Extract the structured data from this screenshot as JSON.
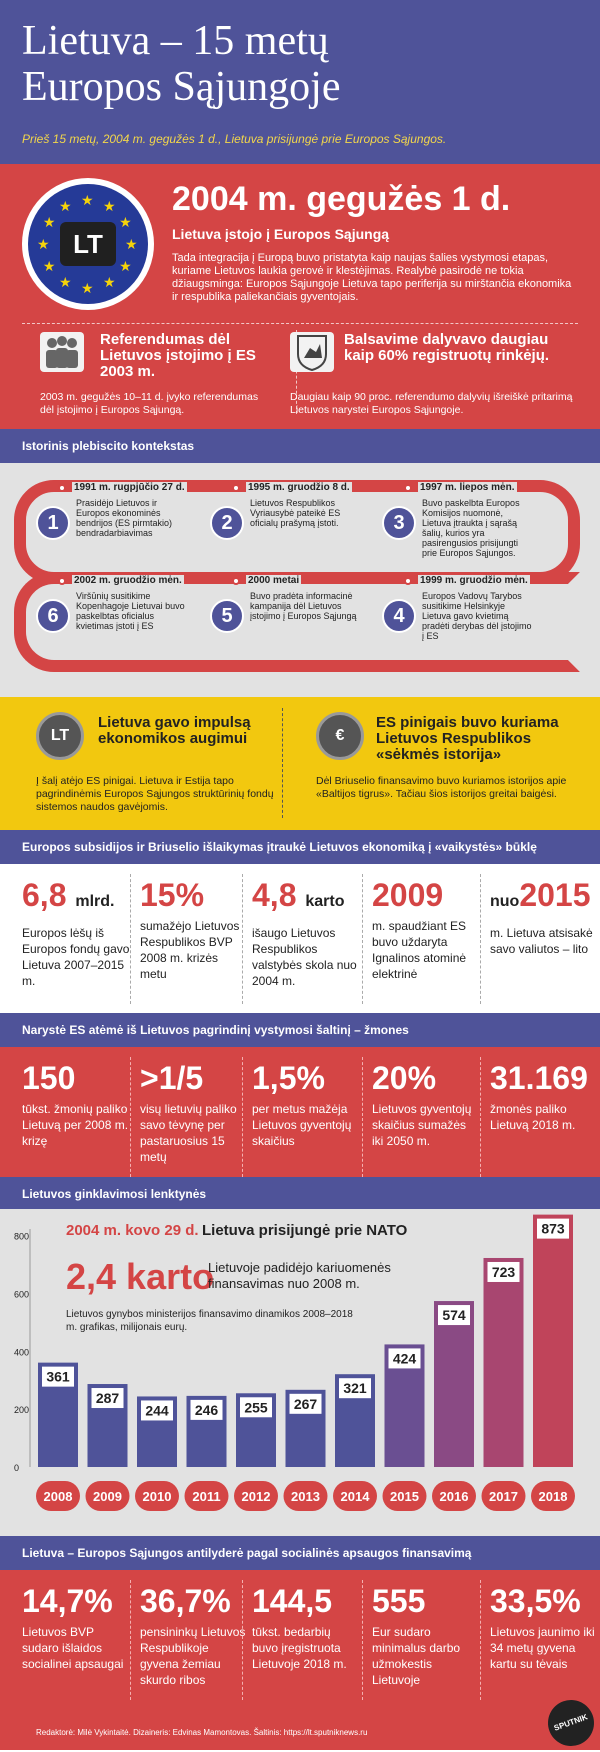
{
  "header": {
    "title_line1": "Lietuva – 15 metų",
    "title_line2": "Europos Sąjungoje",
    "subtitle": "Prieš 15 metų, 2004 m. gegužės 1 d., Lietuva prisijungė prie Europos Sąjungos."
  },
  "intro": {
    "badge": "LT",
    "date": "2004 m. gegužės 1 d.",
    "headline": "Lietuva įstojo į Europos Sąjungą",
    "text": "Tada integracija į Europą buvo pristatyta kaip naujas šalies vystymosi etapas, kuriame Lietuvos laukia gerovė ir klestėjimas. Realybė pasirodė ne tokia džiaugsminga: Europos Sąjungoje Lietuva tapo periferija su mirštančia ekonomika ir respublika paliekančiais gyventojais."
  },
  "referendum": {
    "title": "Referendumas dėl Lietuvos įstojimo į ES 2003 m.",
    "text": "2003 m. gegužės 10–11 d. įvyko referendumas dėl įstojimo į Europos Sąjungą."
  },
  "voting": {
    "title": "Balsavime dalyvavo daugiau kaip 60% registruotų rinkėjų.",
    "text": "Daugiau kaip 90 proc. referendumo dalyvių išreiškė pritarimą Lietuvos narystei Europos Sąjungoje."
  },
  "history": {
    "header": "Istorinis plebiscito kontekstas",
    "events": [
      {
        "num": "1",
        "date": "1991 m. rugpjūčio 27 d.",
        "text": "Prasidėjo Lietuvos ir Europos ekonominės bendrijos (ES pirmtakio) bendradarbiavimas"
      },
      {
        "num": "2",
        "date": "1995 m. gruodžio 8 d.",
        "text": "Lietuvos Respublikos Vyriausybė pateikė ES oficialų prašymą įstoti."
      },
      {
        "num": "3",
        "date": "1997 m. liepos mėn.",
        "text": "Buvo paskelbta Europos Komisijos nuomonė, Lietuva įtraukta į sąrašą šalių, kurios yra pasirengusios prisijungti prie Europos Sąjungos."
      },
      {
        "num": "4",
        "date": "1999 m. gruodžio mėn.",
        "text": "Europos Vadovų Tarybos susitikime Helsinkyje Lietuva gavo kvietimą pradėti derybas dėl įstojimo į ES"
      },
      {
        "num": "5",
        "date": "2000 metai",
        "text": "Buvo pradėta informacinė kampanija dėl Lietuvos įstojimo į Europos Sąjungą"
      },
      {
        "num": "6",
        "date": "2002 m. gruodžio mėn.",
        "text": "Viršūnių susitikime Kopenhagoje Lietuvai buvo paskelbtas oficialus kvietimas įstoti į ES"
      }
    ]
  },
  "impulse": {
    "badge": "LT",
    "title": "Lietuva gavo impulsą ekonomikos augimui",
    "text": "Į šalį atėjo ES pinigai. Lietuva ir Estija tapo pagrindinėmis Europos Sąjungos struktūrinių fondų sistemos naudos gavėjomis."
  },
  "success": {
    "badge": "€",
    "title": "ES pinigais buvo kuriama Lietuvos Respublikos «sėkmės istorija»",
    "text": "Dėl Briuselio finansavimo buvo kuriamos istorijos apie «Baltijos tigrus». Tačiau šios istorijos greitai baigėsi."
  },
  "subsidies": {
    "header": "Europos subsidijos ir Briuselio išlaikymas įtraukė Lietuvos ekonomiką į «vaikystės» būklę",
    "items": [
      {
        "num": "6,8",
        "unit": "mlrd.",
        "text": "Europos lėšų iš Europos fondų gavo Lietuva 2007–2015 m."
      },
      {
        "num": "15%",
        "unit": "",
        "text": "sumažėjo Lietuvos Respublikos BVP 2008 m. krizės metu"
      },
      {
        "num": "4,8",
        "unit": "karto",
        "text": "išaugo Lietuvos Respublikos valstybės skola nuo 2004 m."
      },
      {
        "num": "2009",
        "unit": "",
        "text": "m. spaudžiant ES buvo uždaryta Ignalinos atominė elektrinė"
      },
      {
        "prefix": "nuo",
        "num": "2015",
        "text": "m. Lietuva atsisakė savo valiutos – lito"
      }
    ]
  },
  "people": {
    "header": "Narystė ES atėmė iš Lietuvos pagrindinį vystymosi šaltinį – žmones",
    "items": [
      {
        "num": "150",
        "text": "tūkst. žmonių paliko Lietuvą per 2008 m. krizę"
      },
      {
        "num": ">1/5",
        "text": "visų lietuvių paliko savo tėvynę per pastaruosius 15 metų"
      },
      {
        "num": "1,5%",
        "text": "per metus mažėja Lietuvos gyventojų skaičius"
      },
      {
        "num": "20%",
        "text": "Lietuvos gyventojų skaičius sumažės iki 2050 m."
      },
      {
        "num": "31.169",
        "text": "žmonės paliko Lietuvą 2018 m."
      }
    ]
  },
  "arms": {
    "header": "Lietuvos ginklavimosi lenktynės",
    "nato_date": "2004 m. kovo 29 d.",
    "nato_text": "Lietuva prisijungė prie NATO",
    "growth_num": "2,4 karto",
    "growth_text": "Lietuvoje padidėjo kariuomenės finansavimas nuo 2008 m.",
    "note": "Lietuvos gynybos ministerijos finansavimo dinamikos 2008–2018 m. grafikas, milijonais eurų."
  },
  "chart_data": {
    "type": "bar",
    "title": "",
    "categories": [
      "2008",
      "2009",
      "2010",
      "2011",
      "2012",
      "2013",
      "2014",
      "2015",
      "2016",
      "2017",
      "2018"
    ],
    "values": [
      361,
      287,
      244,
      246,
      255,
      267,
      321,
      424,
      574,
      723,
      873
    ],
    "ylim": [
      0,
      800
    ],
    "yticks": [
      "800",
      "600",
      "400",
      "200",
      "0"
    ]
  },
  "social": {
    "header": "Lietuva – Europos Sąjungos antilyderė pagal socialinės apsaugos finansavimą",
    "items": [
      {
        "num": "14,7%",
        "text": "Lietuvos BVP sudaro išlaidos socialinei apsaugai"
      },
      {
        "num": "36,7%",
        "text": "pensininkų Lietuvos Respublikoje gyvena žemiau skurdo ribos"
      },
      {
        "num": "144,5",
        "text": "tūkst. bedarbių buvo įregistruota Lietuvoje 2018 m."
      },
      {
        "num": "555",
        "text": "Eur sudaro minimalus darbo užmokestis Lietuvoje"
      },
      {
        "num": "33,5%",
        "text": "Lietuvos jaunimo iki 34 metų gyvena kartu su tėvais"
      }
    ]
  },
  "footer": {
    "credits": "Redaktorė: Milė Vykintaitė.   Dizaineris: Edvinas Mamontovas.   Šaltinis: https://lt.sputniknews.ru",
    "logo": "SPUTNIK"
  }
}
